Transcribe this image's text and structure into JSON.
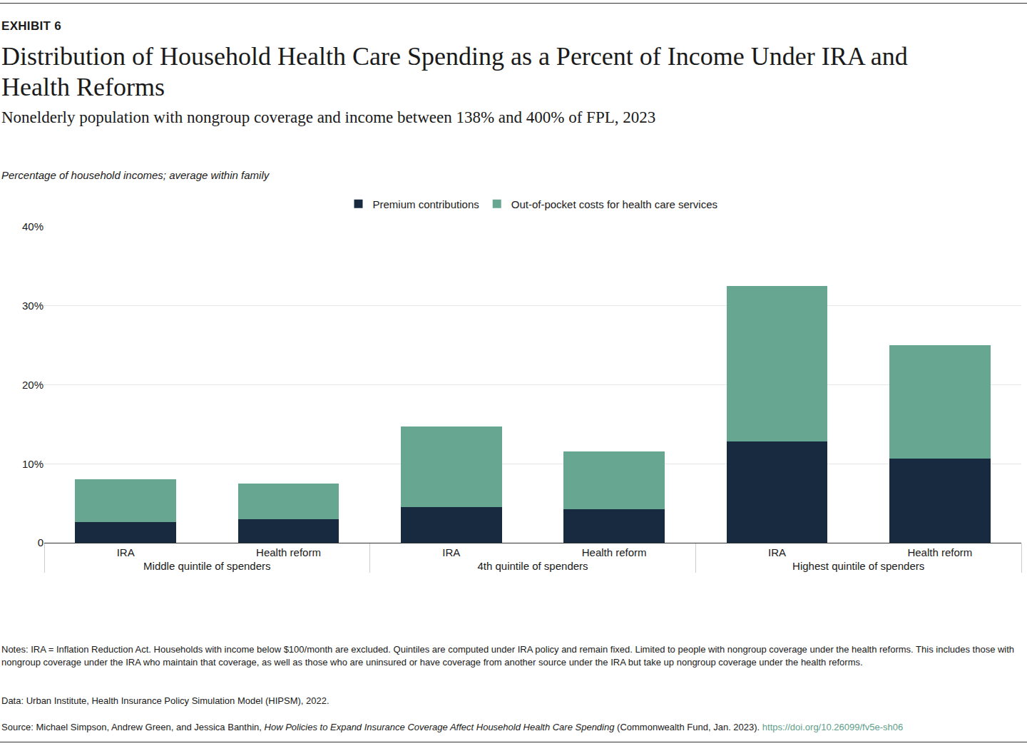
{
  "chart_data": {
    "type": "bar",
    "stacked": true,
    "exhibit": "EXHIBIT 6",
    "title": "Distribution of Household Health Care Spending as a Percent of Income Under IRA and Health Reforms",
    "subtitle": "Nonelderly population with nongroup coverage and income between 138% and 400% of FPL, 2023",
    "y_label": "Percentage of household incomes; average within family",
    "category_groups": [
      "Middle quintile of spenders",
      "Middle quintile of spenders",
      "4th quintile of spenders",
      "4th quintile of spenders",
      "Highest quintile of spenders",
      "Highest quintile of spenders"
    ],
    "categories": [
      "IRA",
      "Health reform",
      "IRA",
      "Health reform",
      "IRA",
      "Health reform"
    ],
    "series": [
      {
        "name": "Premium contributions",
        "color": "#172a40",
        "values": [
          2.6,
          3.0,
          4.5,
          4.2,
          12.8,
          10.7
        ]
      },
      {
        "name": "Out-of-pocket costs for health care services",
        "color": "#67a792",
        "values": [
          5.4,
          4.5,
          10.2,
          7.4,
          19.7,
          14.3
        ]
      }
    ],
    "ylim": [
      0,
      40
    ],
    "yticks": [
      0,
      {
        "value": 10,
        "label": "10%"
      },
      {
        "value": 20,
        "label": "20%"
      },
      {
        "value": 30,
        "label": "30%"
      },
      {
        "value": 40,
        "label": "40%"
      }
    ],
    "grid": true,
    "legend": "top",
    "notes": "Notes: IRA = Inflation Reduction Act. Households with income below $100/month are excluded. Quintiles are computed under IRA policy and remain fixed. Limited to people with nongroup coverage under the health reforms. This includes those with nongroup coverage under the IRA who maintain that coverage, as well as those who are uninsured or have coverage from another source under the IRA but take up nongroup coverage under the health reforms.",
    "data_source": "Data: Urban Institute, Health Insurance Policy Simulation Model (HIPSM), 2022.",
    "source": {
      "prefix": "Source: Michael Simpson, Andrew Green, and Jessica Banthin, ",
      "title": "How Policies to Expand Insurance Coverage Affect Household Health Care Spending",
      "suffix": " (Commonwealth Fund, Jan. 2023). ",
      "link": "https://doi.org/10.26099/fv5e-sh06"
    }
  }
}
